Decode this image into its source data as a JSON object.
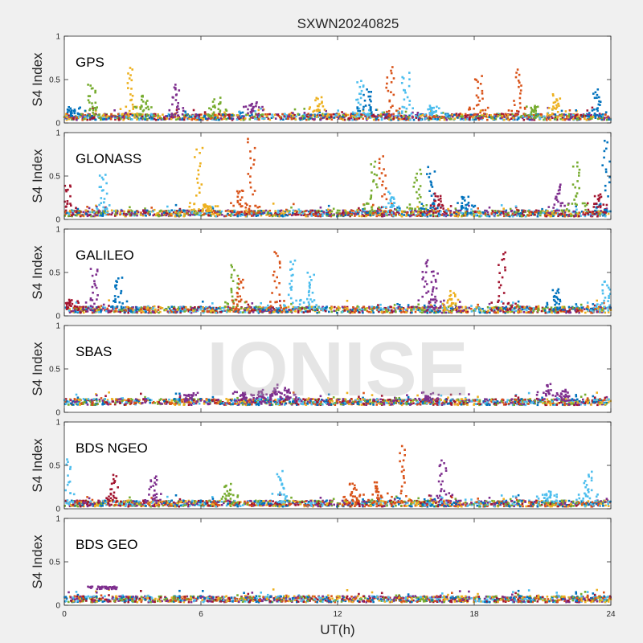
{
  "chart_data": {
    "type": "scatter",
    "title": "SXWN20240825",
    "xlabel": "UT(h)",
    "ylabel": "S4 Index",
    "xlim": [
      0,
      24
    ],
    "ylim": [
      0,
      1
    ],
    "x_ticks": [
      "0",
      "6",
      "12",
      "18",
      "24"
    ],
    "y_ticks": [
      "0",
      "0.5",
      "1"
    ],
    "watermark": "IONISE",
    "series_colors": [
      "#0072BD",
      "#D95319",
      "#EDB120",
      "#7E2F8E",
      "#77AC30",
      "#4DBEEE",
      "#A2142F"
    ],
    "panels": [
      {
        "name": "GPS",
        "baseline": 0.07,
        "spikes": [
          {
            "x": 0.3,
            "y": 0.15,
            "c": 0
          },
          {
            "x": 1.2,
            "y": 0.45,
            "c": 4
          },
          {
            "x": 2.9,
            "y": 0.64,
            "c": 2
          },
          {
            "x": 3.5,
            "y": 0.32,
            "c": 4
          },
          {
            "x": 4.9,
            "y": 0.45,
            "c": 3
          },
          {
            "x": 6.7,
            "y": 0.28,
            "c": 4
          },
          {
            "x": 8.3,
            "y": 0.25,
            "c": 3
          },
          {
            "x": 11.2,
            "y": 0.3,
            "c": 2
          },
          {
            "x": 13.0,
            "y": 0.5,
            "c": 5
          },
          {
            "x": 13.3,
            "y": 0.38,
            "c": 0
          },
          {
            "x": 14.3,
            "y": 0.64,
            "c": 1
          },
          {
            "x": 15.0,
            "y": 0.57,
            "c": 5
          },
          {
            "x": 16.2,
            "y": 0.2,
            "c": 5
          },
          {
            "x": 18.2,
            "y": 0.54,
            "c": 1
          },
          {
            "x": 19.9,
            "y": 0.62,
            "c": 1
          },
          {
            "x": 20.6,
            "y": 0.2,
            "c": 4
          },
          {
            "x": 21.6,
            "y": 0.32,
            "c": 2
          },
          {
            "x": 23.4,
            "y": 0.38,
            "c": 0
          }
        ]
      },
      {
        "name": "GLONASS",
        "baseline": 0.07,
        "spikes": [
          {
            "x": 0.1,
            "y": 0.4,
            "c": 6
          },
          {
            "x": 1.7,
            "y": 0.52,
            "c": 5
          },
          {
            "x": 5.9,
            "y": 0.84,
            "c": 2
          },
          {
            "x": 6.3,
            "y": 0.18,
            "c": 2
          },
          {
            "x": 7.7,
            "y": 0.35,
            "c": 1
          },
          {
            "x": 8.2,
            "y": 0.92,
            "c": 1
          },
          {
            "x": 13.6,
            "y": 0.66,
            "c": 4
          },
          {
            "x": 14.0,
            "y": 0.72,
            "c": 1
          },
          {
            "x": 14.4,
            "y": 0.3,
            "c": 5
          },
          {
            "x": 15.5,
            "y": 0.57,
            "c": 4
          },
          {
            "x": 16.1,
            "y": 0.6,
            "c": 0
          },
          {
            "x": 16.4,
            "y": 0.3,
            "c": 6
          },
          {
            "x": 17.6,
            "y": 0.27,
            "c": 0
          },
          {
            "x": 21.7,
            "y": 0.4,
            "c": 3
          },
          {
            "x": 22.5,
            "y": 0.66,
            "c": 4
          },
          {
            "x": 23.8,
            "y": 0.92,
            "c": 0
          },
          {
            "x": 23.4,
            "y": 0.3,
            "c": 6
          }
        ]
      },
      {
        "name": "GALILEO",
        "baseline": 0.07,
        "spikes": [
          {
            "x": 0.2,
            "y": 0.18,
            "c": 6
          },
          {
            "x": 1.3,
            "y": 0.56,
            "c": 3
          },
          {
            "x": 2.4,
            "y": 0.45,
            "c": 0
          },
          {
            "x": 7.5,
            "y": 0.58,
            "c": 4
          },
          {
            "x": 7.7,
            "y": 0.43,
            "c": 1
          },
          {
            "x": 9.3,
            "y": 0.75,
            "c": 1
          },
          {
            "x": 10.0,
            "y": 0.65,
            "c": 5
          },
          {
            "x": 10.8,
            "y": 0.5,
            "c": 5
          },
          {
            "x": 15.9,
            "y": 0.66,
            "c": 3
          },
          {
            "x": 16.3,
            "y": 0.53,
            "c": 3
          },
          {
            "x": 17.0,
            "y": 0.27,
            "c": 2
          },
          {
            "x": 19.2,
            "y": 0.75,
            "c": 6
          },
          {
            "x": 21.6,
            "y": 0.3,
            "c": 0
          },
          {
            "x": 23.8,
            "y": 0.4,
            "c": 5
          }
        ]
      },
      {
        "name": "SBAS",
        "baseline": 0.12,
        "spikes": [
          {
            "x": 5.5,
            "y": 0.2,
            "c": 3
          },
          {
            "x": 7.8,
            "y": 0.23,
            "c": 3
          },
          {
            "x": 8.6,
            "y": 0.26,
            "c": 3
          },
          {
            "x": 9.2,
            "y": 0.3,
            "c": 3
          },
          {
            "x": 9.8,
            "y": 0.27,
            "c": 3
          },
          {
            "x": 16.0,
            "y": 0.19,
            "c": 3
          },
          {
            "x": 21.2,
            "y": 0.32,
            "c": 3
          },
          {
            "x": 22.0,
            "y": 0.25,
            "c": 3
          }
        ]
      },
      {
        "name": "BDS NGEO",
        "baseline": 0.06,
        "spikes": [
          {
            "x": 0.1,
            "y": 0.6,
            "c": 5
          },
          {
            "x": 2.2,
            "y": 0.38,
            "c": 6
          },
          {
            "x": 3.9,
            "y": 0.38,
            "c": 3
          },
          {
            "x": 7.2,
            "y": 0.27,
            "c": 4
          },
          {
            "x": 9.5,
            "y": 0.43,
            "c": 5
          },
          {
            "x": 12.7,
            "y": 0.3,
            "c": 1
          },
          {
            "x": 13.8,
            "y": 0.3,
            "c": 1
          },
          {
            "x": 14.8,
            "y": 0.72,
            "c": 1
          },
          {
            "x": 16.6,
            "y": 0.57,
            "c": 3
          },
          {
            "x": 21.2,
            "y": 0.2,
            "c": 5
          },
          {
            "x": 23.0,
            "y": 0.43,
            "c": 5
          }
        ]
      },
      {
        "name": "BDS GEO",
        "baseline": 0.07,
        "spikes": []
      }
    ]
  }
}
